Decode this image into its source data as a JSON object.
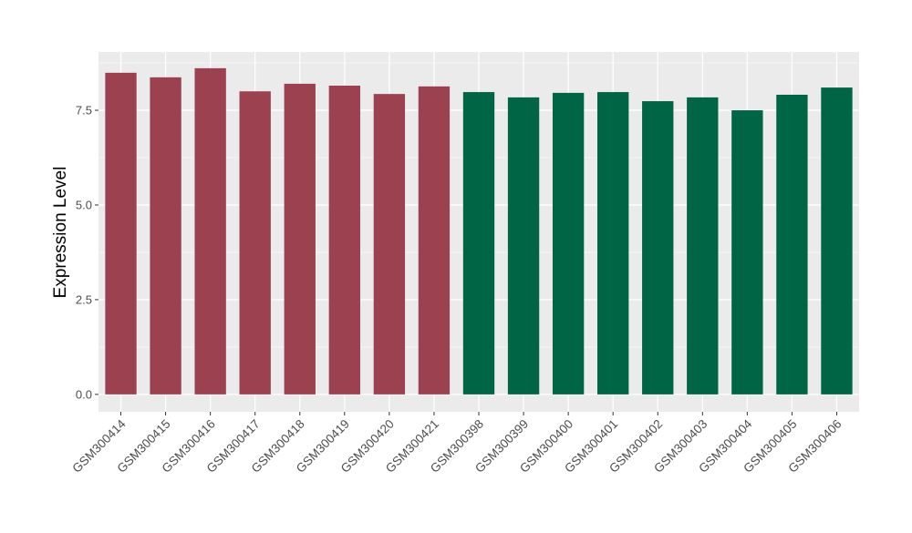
{
  "chart_data": {
    "type": "bar",
    "title": "",
    "xlabel": "",
    "ylabel": "Expression Level",
    "ylim": [
      -0.46,
      9.04
    ],
    "yticks": [
      0,
      2.5,
      5,
      7.5
    ],
    "ytick_labels": [
      "0.0",
      "2.5",
      "5.0",
      "7.5"
    ],
    "grid": true,
    "categories": [
      "GSM300414",
      "GSM300415",
      "GSM300416",
      "GSM300417",
      "GSM300418",
      "GSM300419",
      "GSM300420",
      "GSM300421",
      "GSM300398",
      "GSM300399",
      "GSM300400",
      "GSM300401",
      "GSM300402",
      "GSM300403",
      "GSM300404",
      "GSM300405",
      "GSM300406"
    ],
    "values": [
      8.49,
      8.37,
      8.61,
      8.0,
      8.2,
      8.15,
      7.93,
      8.13,
      7.98,
      7.84,
      7.96,
      7.98,
      7.74,
      7.84,
      7.5,
      7.91,
      8.1
    ],
    "bar_groups": [
      0,
      0,
      0,
      0,
      0,
      0,
      0,
      0,
      1,
      1,
      1,
      1,
      1,
      1,
      1,
      1,
      1
    ],
    "group_colors": [
      "#9B4150",
      "#006544"
    ],
    "panel_background": "#EBEBEB"
  }
}
